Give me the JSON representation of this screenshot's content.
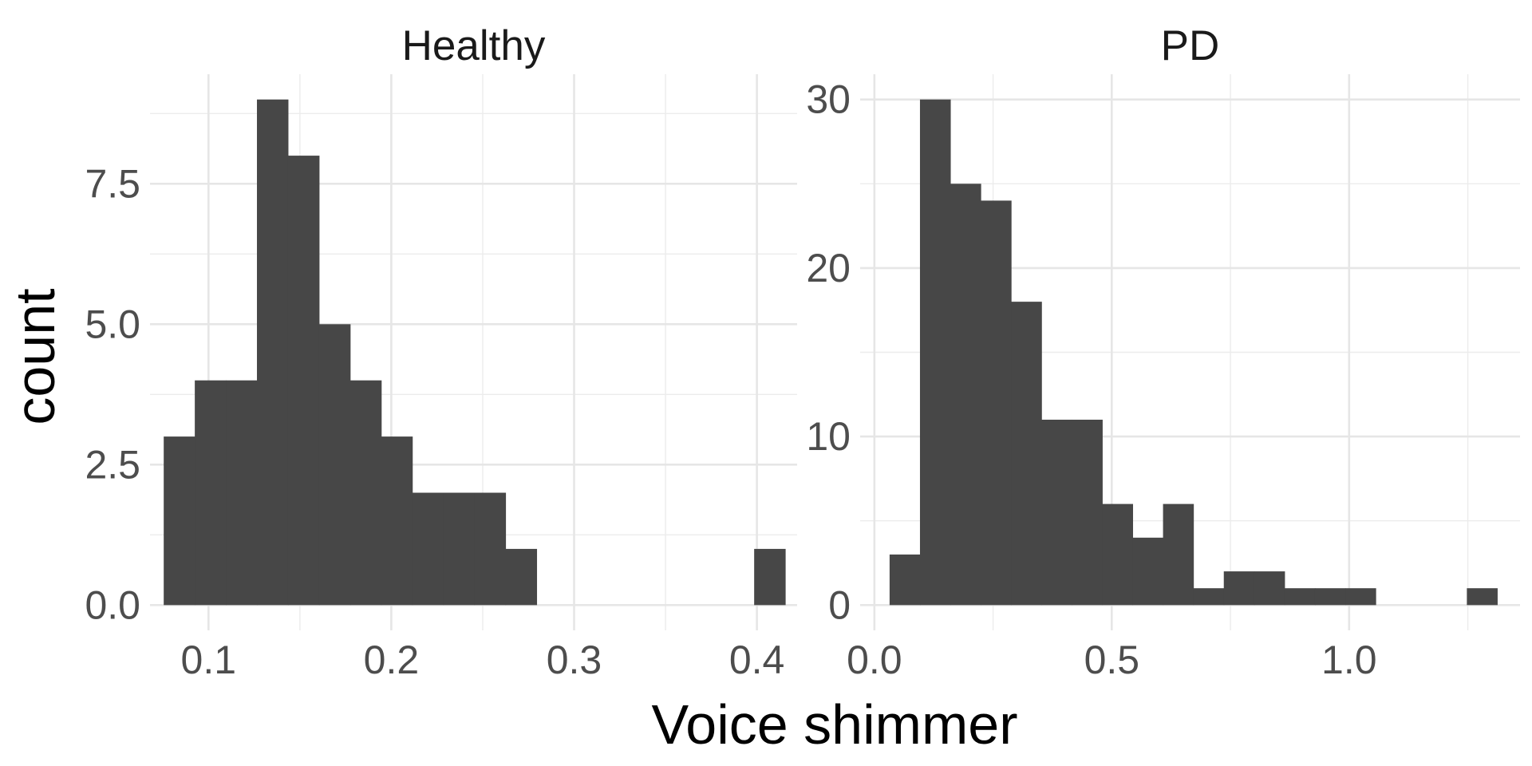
{
  "axes": {
    "xlabel": "Voice shimmer",
    "ylabel": "count"
  },
  "colors": {
    "bar": "#474747",
    "grid": "#e6e6e6",
    "background": "#ffffff"
  },
  "chart_data": [
    {
      "type": "bar",
      "title": "Healthy",
      "xlim": [
        0.068,
        0.422
      ],
      "ylim": [
        -0.45,
        9.45
      ],
      "xticks": [
        0.1,
        0.2,
        0.3,
        0.4
      ],
      "xtick_labels": [
        "0.1",
        "0.2",
        "0.3",
        "0.4"
      ],
      "yticks": [
        0,
        2.5,
        5,
        7.5
      ],
      "ytick_labels": [
        "0.0",
        "2.5",
        "5.0",
        "7.5"
      ],
      "grid": true,
      "bins": [
        {
          "x0": 0.0755,
          "x1": 0.0925,
          "count": 3
        },
        {
          "x0": 0.0925,
          "x1": 0.1095,
          "count": 4
        },
        {
          "x0": 0.1095,
          "x1": 0.1265,
          "count": 4
        },
        {
          "x0": 0.1265,
          "x1": 0.1435,
          "count": 9
        },
        {
          "x0": 0.1435,
          "x1": 0.1605,
          "count": 8
        },
        {
          "x0": 0.1605,
          "x1": 0.1775,
          "count": 5
        },
        {
          "x0": 0.1775,
          "x1": 0.1945,
          "count": 4
        },
        {
          "x0": 0.1945,
          "x1": 0.2115,
          "count": 3
        },
        {
          "x0": 0.2115,
          "x1": 0.2285,
          "count": 2
        },
        {
          "x0": 0.2285,
          "x1": 0.2455,
          "count": 2
        },
        {
          "x0": 0.2455,
          "x1": 0.2625,
          "count": 2
        },
        {
          "x0": 0.2625,
          "x1": 0.2795,
          "count": 1
        },
        {
          "x0": 0.2795,
          "x1": 0.2965,
          "count": 0
        },
        {
          "x0": 0.2965,
          "x1": 0.3135,
          "count": 0
        },
        {
          "x0": 0.3135,
          "x1": 0.3305,
          "count": 0
        },
        {
          "x0": 0.3305,
          "x1": 0.3475,
          "count": 0
        },
        {
          "x0": 0.3475,
          "x1": 0.3645,
          "count": 0
        },
        {
          "x0": 0.3645,
          "x1": 0.3815,
          "count": 0
        },
        {
          "x0": 0.3815,
          "x1": 0.3985,
          "count": 0
        },
        {
          "x0": 0.3985,
          "x1": 0.4155,
          "count": 1
        }
      ]
    },
    {
      "type": "bar",
      "title": "PD",
      "xlim": [
        -0.03,
        1.36
      ],
      "ylim": [
        -1.5,
        31.5
      ],
      "xticks": [
        0,
        0.5,
        1.0
      ],
      "xtick_labels": [
        "0.0",
        "0.5",
        "1.0"
      ],
      "yticks": [
        0,
        10,
        20,
        30
      ],
      "ytick_labels": [
        "0",
        "10",
        "20",
        "30"
      ],
      "grid": true,
      "bins": [
        {
          "x0": 0.032,
          "x1": 0.096,
          "count": 3
        },
        {
          "x0": 0.096,
          "x1": 0.16,
          "count": 30
        },
        {
          "x0": 0.16,
          "x1": 0.224,
          "count": 25
        },
        {
          "x0": 0.224,
          "x1": 0.288,
          "count": 24
        },
        {
          "x0": 0.288,
          "x1": 0.352,
          "count": 18
        },
        {
          "x0": 0.352,
          "x1": 0.416,
          "count": 11
        },
        {
          "x0": 0.416,
          "x1": 0.48,
          "count": 11
        },
        {
          "x0": 0.48,
          "x1": 0.544,
          "count": 6
        },
        {
          "x0": 0.544,
          "x1": 0.608,
          "count": 4
        },
        {
          "x0": 0.608,
          "x1": 0.672,
          "count": 6
        },
        {
          "x0": 0.672,
          "x1": 0.736,
          "count": 1
        },
        {
          "x0": 0.736,
          "x1": 0.8,
          "count": 2
        },
        {
          "x0": 0.8,
          "x1": 0.864,
          "count": 2
        },
        {
          "x0": 0.864,
          "x1": 0.928,
          "count": 1
        },
        {
          "x0": 0.928,
          "x1": 0.992,
          "count": 1
        },
        {
          "x0": 0.992,
          "x1": 1.056,
          "count": 1
        },
        {
          "x0": 1.056,
          "x1": 1.12,
          "count": 0
        },
        {
          "x0": 1.12,
          "x1": 1.184,
          "count": 0
        },
        {
          "x0": 1.184,
          "x1": 1.248,
          "count": 0
        },
        {
          "x0": 1.248,
          "x1": 1.312,
          "count": 1
        }
      ]
    }
  ]
}
